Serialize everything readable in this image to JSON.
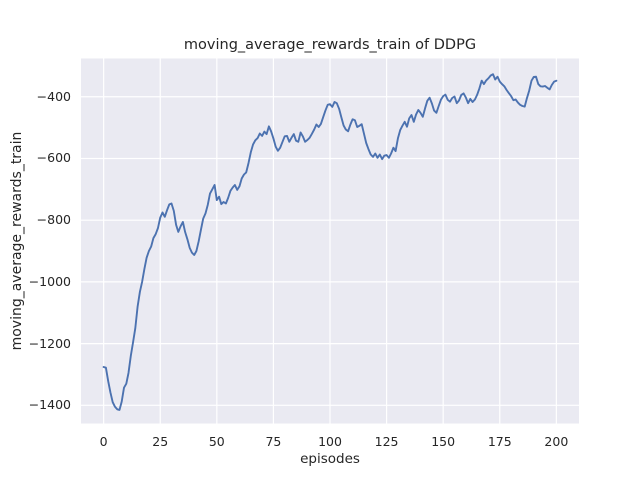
{
  "figure": {
    "title": "moving_average_rewards_train of DDPG",
    "x_axis": {
      "label": "episodes",
      "tick_labels": [
        "0",
        "25",
        "50",
        "75",
        "100",
        "125",
        "150",
        "175",
        "200"
      ],
      "tick_values": [
        0,
        25,
        50,
        75,
        100,
        125,
        150,
        175,
        200
      ]
    },
    "y_axis": {
      "label": "moving_average_rewards_train",
      "tick_labels": [
        "−400",
        "−600",
        "−800",
        "−1000",
        "−1200",
        "−1400"
      ],
      "tick_values": [
        -400,
        -600,
        -800,
        -1000,
        -1200,
        -1400
      ]
    },
    "colors": {
      "figure_background": "#ffffff",
      "plot_background": "#eaeaf2",
      "grid": "#ffffff",
      "line": "#4c72b0",
      "text": "#262626"
    }
  },
  "chart_data": {
    "type": "line",
    "title": "moving_average_rewards_train of DDPG",
    "xlabel": "episodes",
    "ylabel": "moving_average_rewards_train",
    "xlim": [
      -10,
      210
    ],
    "ylim": [
      -1459,
      -276
    ],
    "grid": true,
    "legend": false,
    "series": [
      {
        "name": "DDPG moving average rewards (train)",
        "x_start": 0,
        "x_step": 1,
        "values": [
          -1276,
          -1278,
          -1322,
          -1358,
          -1390,
          -1405,
          -1413,
          -1415,
          -1388,
          -1343,
          -1330,
          -1295,
          -1240,
          -1195,
          -1150,
          -1080,
          -1032,
          -1000,
          -958,
          -922,
          -900,
          -885,
          -858,
          -845,
          -825,
          -792,
          -775,
          -789,
          -768,
          -749,
          -746,
          -770,
          -815,
          -838,
          -820,
          -806,
          -838,
          -862,
          -890,
          -905,
          -913,
          -900,
          -868,
          -830,
          -795,
          -778,
          -750,
          -714,
          -700,
          -686,
          -735,
          -724,
          -748,
          -741,
          -746,
          -728,
          -705,
          -694,
          -686,
          -702,
          -690,
          -665,
          -652,
          -645,
          -615,
          -580,
          -555,
          -541,
          -534,
          -519,
          -527,
          -513,
          -521,
          -496,
          -512,
          -535,
          -562,
          -575,
          -565,
          -546,
          -528,
          -527,
          -546,
          -533,
          -521,
          -542,
          -546,
          -516,
          -528,
          -546,
          -540,
          -533,
          -520,
          -506,
          -490,
          -498,
          -488,
          -466,
          -444,
          -426,
          -424,
          -433,
          -417,
          -421,
          -439,
          -466,
          -493,
          -506,
          -512,
          -490,
          -473,
          -476,
          -498,
          -494,
          -489,
          -520,
          -550,
          -570,
          -587,
          -595,
          -584,
          -598,
          -587,
          -602,
          -591,
          -589,
          -598,
          -584,
          -565,
          -576,
          -535,
          -508,
          -494,
          -481,
          -497,
          -470,
          -459,
          -481,
          -458,
          -443,
          -452,
          -465,
          -437,
          -413,
          -403,
          -422,
          -445,
          -452,
          -430,
          -410,
          -398,
          -393,
          -410,
          -416,
          -404,
          -399,
          -421,
          -412,
          -394,
          -389,
          -402,
          -421,
          -407,
          -417,
          -409,
          -394,
          -373,
          -348,
          -359,
          -347,
          -340,
          -331,
          -327,
          -344,
          -335,
          -351,
          -359,
          -366,
          -378,
          -388,
          -398,
          -411,
          -409,
          -419,
          -426,
          -430,
          -432,
          -405,
          -380,
          -348,
          -336,
          -335,
          -359,
          -366,
          -367,
          -365,
          -371,
          -376,
          -362,
          -351,
          -348
        ]
      }
    ]
  }
}
